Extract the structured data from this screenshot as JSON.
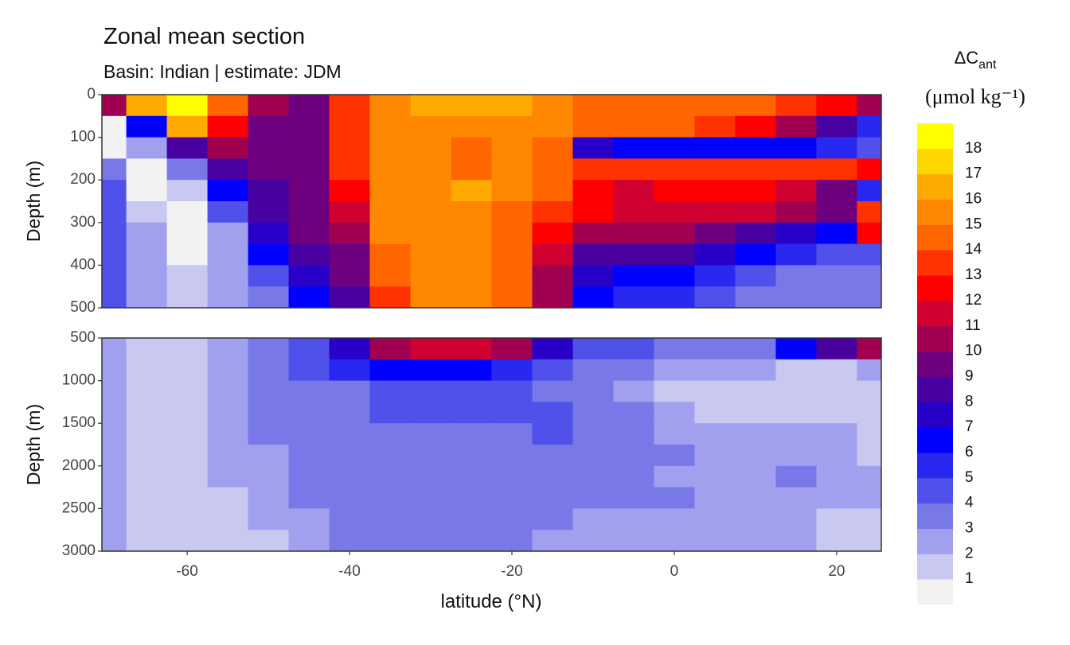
{
  "chart_data": {
    "type": "contour",
    "title": "Zonal mean section",
    "subtitle": "Basin: Indian | estimate: JDM",
    "xlabel": "latitude (°N)",
    "xlim": [
      -70.5,
      25.5
    ],
    "xticks": [
      -60,
      -40,
      -20,
      0,
      20
    ],
    "x": [
      -70,
      -65,
      -60,
      -55,
      -50,
      -45,
      -40,
      -35,
      -30,
      -25,
      -20,
      -15,
      -10,
      -5,
      0,
      5,
      10,
      15,
      20,
      25
    ],
    "colorbar_title": {
      "text": "ΔC",
      "subscript": "ant"
    },
    "colorbar_unit": "(μmol kg⁻¹)",
    "levels": [
      1,
      2,
      3,
      4,
      5,
      6,
      7,
      8,
      9,
      10,
      11,
      12,
      13,
      14,
      15,
      16,
      17,
      18
    ],
    "colors": [
      "#f2f2f2",
      "#c8c8f0",
      "#a0a0ee",
      "#7878e8",
      "#5050ea",
      "#2828f0",
      "#0000ff",
      "#2800c8",
      "#4800a0",
      "#6e0080",
      "#a0004f",
      "#d00030",
      "#ff0000",
      "#ff3300",
      "#ff6600",
      "#ff8800",
      "#ffaa00",
      "#ffd700",
      "#ffff00"
    ],
    "panels": [
      {
        "ylabel": "Depth (m)",
        "ylim": [
          500,
          0
        ],
        "yticks": [
          0,
          100,
          200,
          300,
          400,
          500
        ],
        "depth": [
          25,
          75,
          125,
          175,
          225,
          275,
          325,
          375,
          425,
          475
        ],
        "values": [
          [
            10,
            16,
            18,
            14,
            10,
            9,
            13,
            15,
            16,
            16,
            16,
            15,
            14,
            14,
            14,
            14,
            14,
            13,
            12,
            10
          ],
          [
            0,
            6,
            16,
            12,
            9,
            9,
            13,
            15,
            15,
            15,
            15,
            15,
            14,
            14,
            14,
            13,
            12,
            10,
            8,
            5
          ],
          [
            0,
            2,
            8,
            10,
            9,
            9,
            13,
            15,
            15,
            14,
            15,
            14,
            7,
            6,
            6,
            6,
            6,
            6,
            5,
            4
          ],
          [
            3,
            0,
            3,
            8,
            9,
            9,
            13,
            15,
            15,
            14,
            15,
            14,
            13,
            13,
            13,
            13,
            13,
            13,
            13,
            12
          ],
          [
            4,
            0,
            1,
            6,
            8,
            9,
            12,
            15,
            15,
            16,
            15,
            14,
            12,
            11,
            12,
            12,
            12,
            11,
            9,
            5
          ],
          [
            4,
            1,
            0,
            4,
            8,
            9,
            11,
            15,
            15,
            15,
            14,
            13,
            12,
            11,
            11,
            11,
            11,
            10,
            9,
            13
          ],
          [
            4,
            2,
            0,
            2,
            7,
            9,
            10,
            15,
            15,
            15,
            14,
            12,
            10,
            10,
            10,
            9,
            8,
            7,
            6,
            12
          ],
          [
            4,
            2,
            0,
            2,
            6,
            8,
            9,
            14,
            15,
            15,
            14,
            11,
            8,
            8,
            8,
            7,
            6,
            5,
            4,
            4
          ],
          [
            4,
            2,
            1,
            2,
            4,
            7,
            9,
            14,
            15,
            15,
            14,
            10,
            7,
            6,
            6,
            5,
            4,
            3,
            3,
            3
          ],
          [
            4,
            2,
            1,
            2,
            3,
            6,
            8,
            13,
            15,
            15,
            14,
            10,
            6,
            5,
            5,
            4,
            3,
            3,
            3,
            3
          ]
        ]
      },
      {
        "ylabel": "Depth (m)",
        "ylim": [
          3000,
          500
        ],
        "yticks": [
          500,
          1000,
          1500,
          2000,
          2500,
          3000
        ],
        "depth": [
          625,
          875,
          1125,
          1375,
          1625,
          1875,
          2125,
          2375,
          2625,
          2875
        ],
        "values": [
          [
            2,
            1,
            1,
            2,
            3,
            4,
            7,
            10,
            11,
            11,
            10,
            7,
            4,
            4,
            3,
            3,
            3,
            6,
            8,
            10
          ],
          [
            2,
            1,
            1,
            2,
            3,
            4,
            5,
            6,
            6,
            6,
            5,
            4,
            3,
            3,
            2,
            2,
            2,
            1,
            1,
            2
          ],
          [
            2,
            1,
            1,
            2,
            3,
            3,
            3,
            4,
            4,
            4,
            4,
            3,
            3,
            2,
            1,
            1,
            1,
            1,
            1,
            1
          ],
          [
            2,
            1,
            1,
            2,
            3,
            3,
            3,
            4,
            4,
            4,
            4,
            4,
            3,
            3,
            2,
            1,
            1,
            1,
            1,
            1
          ],
          [
            2,
            1,
            1,
            2,
            3,
            3,
            3,
            3,
            3,
            3,
            3,
            4,
            3,
            3,
            2,
            2,
            2,
            2,
            2,
            1
          ],
          [
            2,
            1,
            1,
            2,
            2,
            3,
            3,
            3,
            3,
            3,
            3,
            3,
            3,
            3,
            3,
            2,
            2,
            2,
            2,
            1
          ],
          [
            2,
            1,
            1,
            2,
            2,
            3,
            3,
            3,
            3,
            3,
            3,
            3,
            3,
            3,
            2,
            2,
            2,
            3,
            2,
            2
          ],
          [
            2,
            1,
            1,
            1,
            2,
            3,
            3,
            3,
            3,
            3,
            3,
            3,
            3,
            3,
            3,
            2,
            2,
            2,
            2,
            2
          ],
          [
            2,
            1,
            1,
            1,
            2,
            2,
            3,
            3,
            3,
            3,
            3,
            3,
            2,
            2,
            2,
            2,
            2,
            2,
            1,
            1
          ],
          [
            2,
            1,
            1,
            1,
            1,
            2,
            3,
            3,
            3,
            3,
            3,
            2,
            2,
            2,
            2,
            2,
            2,
            2,
            1,
            1
          ]
        ]
      }
    ]
  }
}
